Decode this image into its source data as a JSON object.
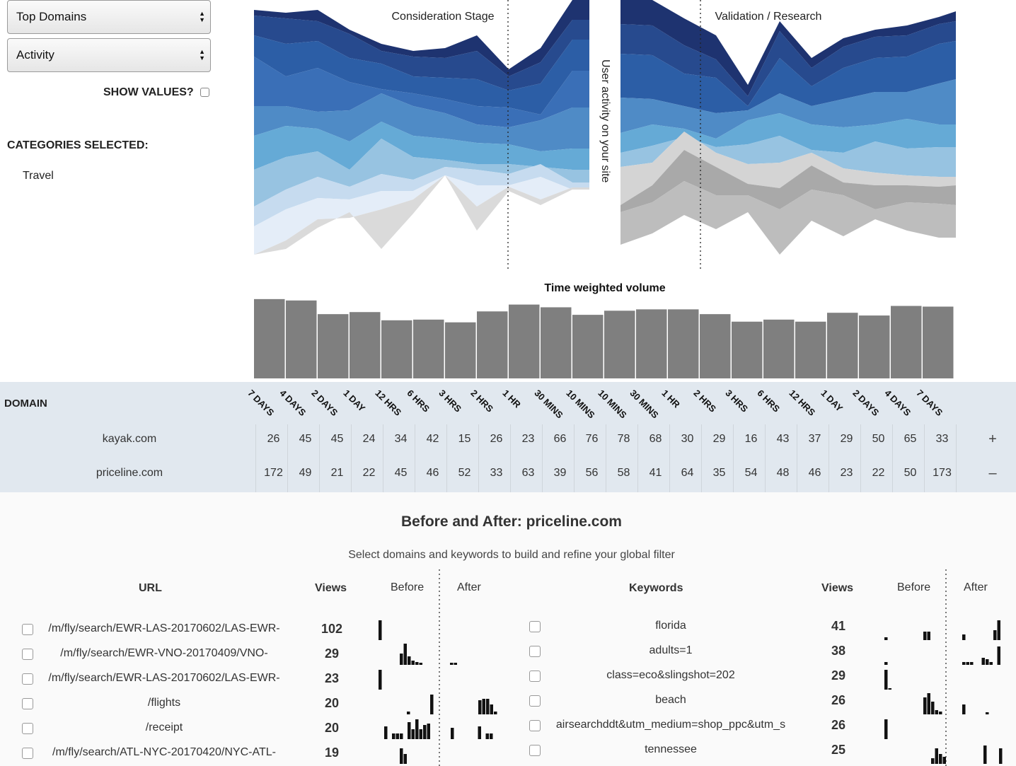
{
  "controls": {
    "select1": "Top Domains",
    "select2": "Activity",
    "show_values_label": "SHOW VALUES?",
    "categories_label": "CATEGORIES SELECTED:",
    "categories": [
      "Travel"
    ]
  },
  "stream": {
    "label_left": "Consideration Stage",
    "label_right": "Validation / Research",
    "vertical_label": "User activity on your site"
  },
  "volume_title": "Time weighted volume",
  "chart_data": {
    "type": "bar",
    "title": "Time weighted volume",
    "categories": [
      "7 DAYS",
      "4 DAYS",
      "2 DAYS",
      "1 DAY",
      "12 HRS",
      "6 HRS",
      "3 HRS",
      "2 HRS",
      "1 HR",
      "30 MINS",
      "10 MINS",
      "10 MINS",
      "30 MINS",
      "1 HR",
      "2 HRS",
      "3 HRS",
      "6 HRS",
      "12 HRS",
      "1 DAY",
      "2 DAYS",
      "4 DAYS",
      "7 DAYS"
    ],
    "values": [
      116,
      114,
      94,
      97,
      85,
      86,
      82,
      98,
      108,
      104,
      93,
      99,
      101,
      101,
      94,
      83,
      86,
      83,
      96,
      92,
      106,
      105
    ],
    "ylim": [
      0,
      120
    ]
  },
  "domains": {
    "header": "DOMAIN",
    "tick_labels": [
      "7 DAYS",
      "4 DAYS",
      "2 DAYS",
      "1 DAY",
      "12 HRS",
      "6 HRS",
      "3 HRS",
      "2 HRS",
      "1 HR",
      "30 MINS",
      "10 MINS",
      "10 MINS",
      "30 MINS",
      "1 HR",
      "2 HRS",
      "3 HRS",
      "6 HRS",
      "12 HRS",
      "1 DAY",
      "2 DAYS",
      "4 DAYS",
      "7 DAYS"
    ],
    "rows": [
      {
        "name": "kayak.com",
        "values": [
          "26",
          "45",
          "45",
          "24",
          "34",
          "42",
          "15",
          "26",
          "23",
          "66",
          "76",
          "78",
          "68",
          "30",
          "29",
          "16",
          "43",
          "37",
          "29",
          "50",
          "65",
          "33"
        ],
        "button": "+"
      },
      {
        "name": "priceline.com",
        "values": [
          "172",
          "49",
          "21",
          "22",
          "45",
          "46",
          "52",
          "33",
          "63",
          "39",
          "56",
          "58",
          "41",
          "64",
          "35",
          "54",
          "48",
          "46",
          "23",
          "22",
          "50",
          "173"
        ],
        "button": "–"
      }
    ]
  },
  "before_after": {
    "title": "Before and After: priceline.com",
    "subtitle": "Select domains and keywords to build and refine your global filter",
    "url_header": "URL",
    "views_header": "Views",
    "before_header": "Before",
    "after_header": "After",
    "keywords_header": "Keywords",
    "urls": [
      {
        "url": "/m/fly/search/EWR-LAS-20170602/LAS-EWR-",
        "views": "102"
      },
      {
        "url": "/m/fly/search/EWR-VNO-20170409/VNO-",
        "views": "29"
      },
      {
        "url": "/m/fly/search/EWR-LAS-20170602/LAS-EWR-",
        "views": "23"
      },
      {
        "url": "/flights",
        "views": "20"
      },
      {
        "url": "/receipt",
        "views": "20"
      },
      {
        "url": "/m/fly/search/ATL-NYC-20170420/NYC-ATL-",
        "views": "19"
      }
    ],
    "keywords": [
      {
        "kw": "florida",
        "views": "41"
      },
      {
        "kw": "adults=1",
        "views": "38"
      },
      {
        "kw": "class=eco&slingshot=202",
        "views": "29"
      },
      {
        "kw": "beach",
        "views": "26"
      },
      {
        "kw": "airsearchddt&utm_medium=shop_ppc&utm_s",
        "views": "26"
      },
      {
        "kw": "tennessee",
        "views": "25"
      }
    ]
  },
  "colors": {
    "bar": "#7f7f7f",
    "band": "#e1e8ef",
    "blues": [
      "#1e3370",
      "#274a8e",
      "#2c5ea6",
      "#3a6fb7",
      "#4f8bc6",
      "#65aad6",
      "#97c3e1",
      "#c6dbef",
      "#e4edf8"
    ],
    "greys": [
      "#dadada",
      "#bdbdbd",
      "#a9a9a9",
      "#d4d4d4",
      "#e3e3e3"
    ]
  }
}
